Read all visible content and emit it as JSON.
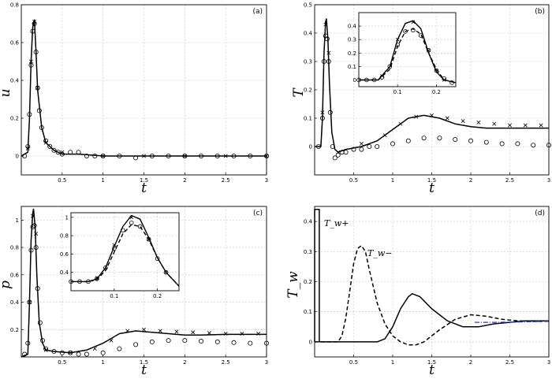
{
  "figure": {
    "panels": [
      {
        "label": "(a)",
        "xlabel": "t",
        "ylabel": "u"
      },
      {
        "label": "(b)",
        "xlabel": "t",
        "ylabel": "T"
      },
      {
        "label": "(c)",
        "xlabel": "t",
        "ylabel": "p"
      },
      {
        "label": "(d)",
        "xlabel": "t",
        "ylabel": "T_w",
        "annotations": [
          "T_w+",
          "T_w−"
        ]
      }
    ]
  },
  "chart_data": [
    {
      "type": "line",
      "panel": "(a)",
      "xlabel": "t",
      "ylabel": "u",
      "xlim": [
        0,
        3
      ],
      "ylim": [
        -0.1,
        0.8
      ],
      "grid": true,
      "xticks": [
        "0.5",
        "1",
        "1.5",
        "2",
        "2.5",
        "3"
      ],
      "yticks": [
        "0",
        "0.2",
        "0.4",
        "0.6",
        "0.8"
      ],
      "series": [
        {
          "style": "solid",
          "x": [
            0,
            0.08,
            0.1,
            0.12,
            0.14,
            0.16,
            0.18,
            0.2,
            0.25,
            0.3,
            0.4,
            0.5,
            0.7,
            1.0,
            1.5,
            2.0,
            2.5,
            3.0
          ],
          "y": [
            0,
            0.02,
            0.2,
            0.5,
            0.68,
            0.72,
            0.55,
            0.35,
            0.15,
            0.07,
            0.03,
            0.01,
            0.01,
            0.0,
            0.0,
            0.0,
            0.0,
            0.0
          ]
        },
        {
          "style": "circles",
          "x": [
            0.04,
            0.08,
            0.1,
            0.12,
            0.14,
            0.16,
            0.18,
            0.2,
            0.22,
            0.25,
            0.3,
            0.35,
            0.4,
            0.45,
            0.5,
            0.6,
            0.7,
            0.8,
            0.9,
            1.0,
            1.2,
            1.4,
            1.6,
            1.8,
            2.0,
            2.2,
            2.4,
            2.6,
            2.8,
            3.0
          ],
          "y": [
            0.0,
            0.05,
            0.22,
            0.48,
            0.66,
            0.7,
            0.55,
            0.36,
            0.24,
            0.15,
            0.08,
            0.05,
            0.03,
            0.02,
            0.01,
            0.02,
            0.02,
            0.0,
            0.0,
            0.0,
            0.0,
            -0.01,
            0.0,
            0.0,
            0.0,
            0.0,
            0.0,
            0.0,
            0.0,
            0.0
          ]
        },
        {
          "style": "crosses",
          "x": [
            0.08,
            0.12,
            0.16,
            0.2,
            0.3,
            0.5,
            1.0,
            1.5,
            2.0,
            2.5,
            3.0
          ],
          "y": [
            0.04,
            0.5,
            0.71,
            0.36,
            0.07,
            0.02,
            0.0,
            0.0,
            0.0,
            0.0,
            0.0
          ]
        }
      ]
    },
    {
      "type": "line",
      "panel": "(b)",
      "xlabel": "t",
      "ylabel": "T",
      "xlim": [
        0,
        3
      ],
      "ylim": [
        -0.1,
        0.5
      ],
      "grid": true,
      "xticks": [
        "0.5",
        "1",
        "1.5",
        "2",
        "2.5",
        "3"
      ],
      "yticks": [
        "0",
        "0.1",
        "0.2",
        "0.3",
        "0.4",
        "0.5"
      ],
      "series": [
        {
          "style": "solid",
          "x": [
            0,
            0.08,
            0.1,
            0.12,
            0.14,
            0.15,
            0.17,
            0.19,
            0.22,
            0.26,
            0.3,
            0.4,
            0.6,
            0.8,
            1.0,
            1.2,
            1.4,
            1.6,
            1.8,
            2.0,
            2.2,
            2.5,
            3.0
          ],
          "y": [
            0,
            0.0,
            0.1,
            0.33,
            0.44,
            0.45,
            0.38,
            0.22,
            0.05,
            -0.01,
            -0.02,
            -0.01,
            0.0,
            0.02,
            0.06,
            0.1,
            0.11,
            0.1,
            0.08,
            0.07,
            0.065,
            0.065,
            0.065
          ]
        },
        {
          "style": "circles",
          "x": [
            0.05,
            0.1,
            0.12,
            0.14,
            0.16,
            0.18,
            0.2,
            0.23,
            0.26,
            0.3,
            0.35,
            0.4,
            0.5,
            0.6,
            0.7,
            0.8,
            1.0,
            1.2,
            1.4,
            1.6,
            1.8,
            2.0,
            2.2,
            2.4,
            2.6,
            2.8,
            3.0
          ],
          "y": [
            0,
            0.1,
            0.3,
            0.39,
            0.38,
            0.3,
            0.12,
            0.0,
            -0.04,
            -0.03,
            -0.02,
            -0.02,
            -0.01,
            -0.01,
            0.0,
            0.0,
            0.01,
            0.02,
            0.03,
            0.03,
            0.025,
            0.02,
            0.015,
            0.01,
            0.01,
            0.005,
            0.005
          ]
        },
        {
          "style": "crosses",
          "x": [
            0.1,
            0.14,
            0.18,
            0.3,
            0.6,
            0.9,
            1.1,
            1.3,
            1.5,
            1.7,
            1.9,
            2.1,
            2.3,
            2.5,
            2.7,
            2.9
          ],
          "y": [
            0.12,
            0.43,
            0.33,
            -0.02,
            0.01,
            0.04,
            0.08,
            0.105,
            0.11,
            0.1,
            0.09,
            0.085,
            0.08,
            0.075,
            0.075,
            0.075
          ]
        }
      ],
      "inset": {
        "xlim": [
          0,
          0.25
        ],
        "ylim": [
          -0.05,
          0.5
        ],
        "xticks": [
          "0.1",
          "0.2"
        ],
        "yticks": [
          "0",
          "0.1",
          "0.2",
          "0.3",
          "0.4"
        ],
        "series": [
          {
            "style": "solid",
            "x": [
              0,
              0.05,
              0.08,
              0.1,
              0.12,
              0.14,
              0.16,
              0.18,
              0.2,
              0.22,
              0.25
            ],
            "y": [
              0,
              0.0,
              0.1,
              0.3,
              0.42,
              0.44,
              0.38,
              0.2,
              0.06,
              0.0,
              -0.02
            ]
          },
          {
            "style": "dashed",
            "x": [
              0,
              0.05,
              0.08,
              0.1,
              0.12,
              0.14,
              0.16,
              0.18,
              0.2,
              0.22,
              0.25
            ],
            "y": [
              0,
              0.0,
              0.08,
              0.25,
              0.36,
              0.38,
              0.34,
              0.2,
              0.08,
              0.0,
              -0.02
            ]
          },
          {
            "style": "circles",
            "x": [
              0,
              0.02,
              0.04,
              0.06,
              0.08,
              0.1,
              0.12,
              0.14,
              0.16,
              0.18,
              0.2,
              0.22,
              0.24
            ],
            "y": [
              0,
              0.0,
              0.0,
              0.02,
              0.1,
              0.26,
              0.36,
              0.37,
              0.33,
              0.22,
              0.07,
              0.01,
              -0.02
            ]
          },
          {
            "style": "crosses",
            "x": [
              0.06,
              0.1,
              0.14,
              0.18,
              0.22
            ],
            "y": [
              0.03,
              0.3,
              0.43,
              0.22,
              0.0
            ]
          }
        ]
      }
    },
    {
      "type": "line",
      "panel": "(c)",
      "xlabel": "t",
      "ylabel": "p",
      "xlim": [
        0,
        3
      ],
      "ylim": [
        0,
        1.1
      ],
      "grid": true,
      "xticks": [
        "0.5",
        "1",
        "1.5",
        "2",
        "2.5",
        "3"
      ],
      "yticks": [
        "0.2",
        "0.4",
        "0.6",
        "0.8",
        "1"
      ],
      "series": [
        {
          "style": "solid",
          "x": [
            0,
            0.08,
            0.1,
            0.12,
            0.14,
            0.15,
            0.17,
            0.19,
            0.22,
            0.26,
            0.3,
            0.4,
            0.6,
            0.8,
            1.0,
            1.2,
            1.4,
            1.6,
            1.8,
            2.0,
            2.2,
            2.5,
            3.0
          ],
          "y": [
            0,
            0.02,
            0.4,
            0.85,
            1.05,
            1.08,
            0.95,
            0.6,
            0.25,
            0.1,
            0.05,
            0.04,
            0.03,
            0.05,
            0.1,
            0.17,
            0.19,
            0.18,
            0.17,
            0.16,
            0.16,
            0.165,
            0.165
          ]
        },
        {
          "style": "circles",
          "x": [
            0.04,
            0.08,
            0.1,
            0.12,
            0.14,
            0.16,
            0.18,
            0.2,
            0.23,
            0.26,
            0.3,
            0.4,
            0.5,
            0.6,
            0.7,
            0.8,
            1.0,
            1.2,
            1.4,
            1.6,
            1.8,
            2.0,
            2.2,
            2.4,
            2.6,
            2.8,
            3.0
          ],
          "y": [
            0.02,
            0.1,
            0.4,
            0.78,
            0.95,
            0.96,
            0.8,
            0.5,
            0.25,
            0.12,
            0.06,
            0.04,
            0.03,
            0.03,
            0.02,
            0.02,
            0.03,
            0.06,
            0.09,
            0.11,
            0.12,
            0.12,
            0.115,
            0.11,
            0.105,
            0.1,
            0.1
          ]
        },
        {
          "style": "crosses",
          "x": [
            0.1,
            0.14,
            0.18,
            0.3,
            0.6,
            0.9,
            1.1,
            1.3,
            1.5,
            1.7,
            1.9,
            2.1,
            2.3,
            2.5,
            2.7,
            2.9
          ],
          "y": [
            0.4,
            1.03,
            0.9,
            0.05,
            0.03,
            0.06,
            0.12,
            0.19,
            0.2,
            0.19,
            0.185,
            0.18,
            0.175,
            0.17,
            0.17,
            0.17
          ]
        }
      ],
      "inset": {
        "xlim": [
          0,
          0.25
        ],
        "ylim": [
          0.2,
          1.05
        ],
        "xticks": [
          "0.1",
          "0.2"
        ],
        "yticks": [
          "0.4",
          "0.6",
          "0.8",
          "1"
        ],
        "series": [
          {
            "style": "solid",
            "x": [
              0,
              0.04,
              0.06,
              0.08,
              0.1,
              0.12,
              0.14,
              0.16,
              0.18,
              0.2,
              0.22,
              0.25
            ],
            "y": [
              0.3,
              0.3,
              0.33,
              0.45,
              0.68,
              0.9,
              1.02,
              0.98,
              0.78,
              0.56,
              0.4,
              0.25
            ]
          },
          {
            "style": "dashed",
            "x": [
              0,
              0.04,
              0.06,
              0.08,
              0.1,
              0.12,
              0.14,
              0.16,
              0.18,
              0.2,
              0.22,
              0.25
            ],
            "y": [
              0.3,
              0.3,
              0.32,
              0.42,
              0.62,
              0.82,
              0.92,
              0.9,
              0.76,
              0.56,
              0.4,
              0.25
            ]
          },
          {
            "style": "circles",
            "x": [
              0,
              0.02,
              0.04,
              0.06,
              0.08,
              0.1,
              0.12,
              0.14,
              0.16,
              0.18,
              0.2,
              0.22
            ],
            "y": [
              0.3,
              0.3,
              0.3,
              0.33,
              0.45,
              0.66,
              0.86,
              0.94,
              0.9,
              0.76,
              0.55,
              0.4
            ]
          },
          {
            "style": "crosses",
            "x": [
              0.06,
              0.1,
              0.14,
              0.18,
              0.22
            ],
            "y": [
              0.34,
              0.7,
              1.0,
              0.76,
              0.4
            ]
          }
        ]
      }
    },
    {
      "type": "line",
      "panel": "(d)",
      "xlabel": "t",
      "ylabel": "T_w",
      "xlim": [
        0,
        3
      ],
      "ylim": [
        -0.05,
        0.45
      ],
      "grid": true,
      "xticks": [
        "0.5",
        "1",
        "1.5",
        "2",
        "2.5",
        "3"
      ],
      "yticks": [
        "0",
        "0.1",
        "0.2",
        "0.3",
        "0.4"
      ],
      "series": [
        {
          "style": "solid-step",
          "x": [
            0,
            0.0,
            0.06,
            0.06,
            0.8,
            0.9,
            1.0,
            1.1,
            1.2,
            1.25,
            1.35,
            1.5,
            1.7,
            1.9,
            2.1,
            2.3,
            2.5,
            2.7,
            3.0
          ],
          "y": [
            0,
            0.44,
            0.44,
            0,
            0,
            0.01,
            0.05,
            0.11,
            0.15,
            0.16,
            0.15,
            0.11,
            0.07,
            0.05,
            0.05,
            0.06,
            0.065,
            0.07,
            0.07
          ]
        },
        {
          "style": "dashed",
          "x": [
            0,
            0.3,
            0.35,
            0.4,
            0.45,
            0.5,
            0.55,
            0.6,
            0.65,
            0.7,
            0.8,
            0.9,
            1.0,
            1.1,
            1.2,
            1.3,
            1.4,
            1.6,
            1.8,
            2.0,
            2.2,
            2.4,
            2.6,
            2.8,
            3.0
          ],
          "y": [
            0,
            0,
            0.02,
            0.08,
            0.17,
            0.26,
            0.31,
            0.32,
            0.3,
            0.24,
            0.13,
            0.06,
            0.02,
            0.0,
            -0.01,
            -0.01,
            0.0,
            0.04,
            0.075,
            0.09,
            0.085,
            0.075,
            0.07,
            0.068,
            0.068
          ]
        },
        {
          "style": "dash-dot-blue",
          "color": "#1f3fbf",
          "x": [
            2.05,
            2.3,
            2.6,
            2.9,
            3.0
          ],
          "y": [
            0.065,
            0.065,
            0.066,
            0.068,
            0.068
          ]
        }
      ]
    }
  ]
}
